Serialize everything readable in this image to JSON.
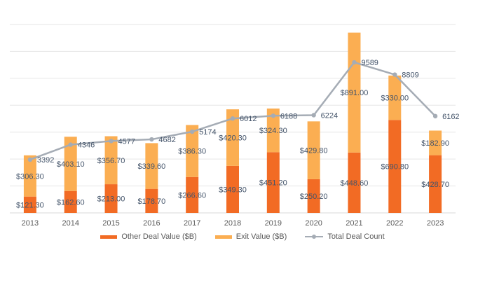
{
  "chart_data": {
    "type": "bar",
    "stacked": true,
    "categories": [
      "2013",
      "2014",
      "2015",
      "2016",
      "2017",
      "2018",
      "2019",
      "2020",
      "2021",
      "2022",
      "2023"
    ],
    "series": [
      {
        "name": "Other Deal Value ($B)",
        "kind": "bar",
        "color": "#F26B24",
        "values": [
          121.3,
          162.6,
          213.0,
          178.7,
          266.6,
          349.3,
          451.2,
          250.2,
          448.6,
          690.8,
          428.7
        ],
        "labels": [
          "$121.30",
          "$162.60",
          "$213.00",
          "$178.70",
          "$266.60",
          "$349.30",
          "$451.20",
          "$250.20",
          "$448.60",
          "$690.80",
          "$428.70"
        ]
      },
      {
        "name": "Exit Value ($B)",
        "kind": "bar",
        "color": "#FBAE52",
        "values": [
          306.3,
          403.1,
          356.7,
          339.6,
          386.3,
          420.3,
          324.3,
          429.8,
          891.0,
          330.0,
          182.9
        ],
        "labels": [
          "$306.30",
          "$403.10",
          "$356.70",
          "$339.60",
          "$386.30",
          "$420.30",
          "$324.30",
          "$429.80",
          "$891.00",
          "$330.00",
          "$182.90"
        ]
      },
      {
        "name": "Total Deal Count",
        "kind": "line",
        "color": "#A5ACB5",
        "values": [
          3392,
          4346,
          4577,
          4682,
          5174,
          6012,
          6188,
          6224,
          9589,
          8809,
          6162
        ],
        "labels": [
          "3392",
          "4346",
          "4577",
          "4682",
          "5174",
          "6012",
          "6188",
          "6224",
          "9589",
          "8809",
          "6162"
        ]
      }
    ],
    "primary_ylim": [
      0,
      1400
    ],
    "secondary_ylim": [
      0,
      12000
    ],
    "grid": true,
    "legend_position": "bottom"
  }
}
